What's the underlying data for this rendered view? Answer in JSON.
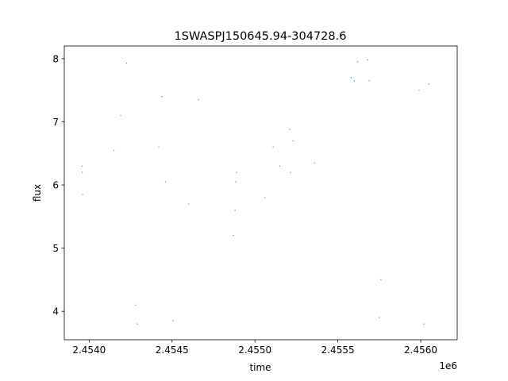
{
  "chart_data": {
    "type": "scatter",
    "title": "1SWASPJ150645.94-304728.6",
    "xlabel": "time",
    "ylabel": "flux",
    "x_offset_label": "1e6",
    "xlim": [
      2453850,
      2456220
    ],
    "ylim": [
      3.55,
      8.2
    ],
    "x_ticks": [
      2454000,
      2454500,
      2455000,
      2455500,
      2456000
    ],
    "x_tick_labels": [
      "2.4540",
      "2.4545",
      "2.4550",
      "2.4555",
      "2.4560"
    ],
    "y_ticks": [
      4,
      5,
      6,
      7,
      8
    ],
    "y_tick_labels": [
      "4",
      "5",
      "6",
      "7",
      "8"
    ],
    "grid": false,
    "marker_color": "#1f77b4",
    "series": [
      {
        "x": [
          2453957,
          2453958,
          2453960,
          2454150,
          2454190,
          2454225,
          2454280,
          2454290,
          2454420,
          2454440,
          2454460,
          2454505,
          2454600,
          2454660,
          2454870,
          2454880,
          2454885,
          2454890,
          2455060,
          2455110,
          2455150,
          2455210,
          2455215,
          2455230,
          2455360,
          2455580,
          2455600,
          2455620,
          2455680,
          2455690,
          2455750,
          2455760,
          2455990,
          2456050,
          2456020
        ],
        "y": [
          6.3,
          6.2,
          5.85,
          6.55,
          7.1,
          7.93,
          4.1,
          3.8,
          6.6,
          7.4,
          6.05,
          3.85,
          5.7,
          7.35,
          5.2,
          5.6,
          6.05,
          6.2,
          5.8,
          6.6,
          6.3,
          6.88,
          6.2,
          6.7,
          6.35,
          7.7,
          7.65,
          7.95,
          7.98,
          7.65,
          3.9,
          4.5,
          7.5,
          7.6,
          3.8
        ]
      }
    ]
  }
}
